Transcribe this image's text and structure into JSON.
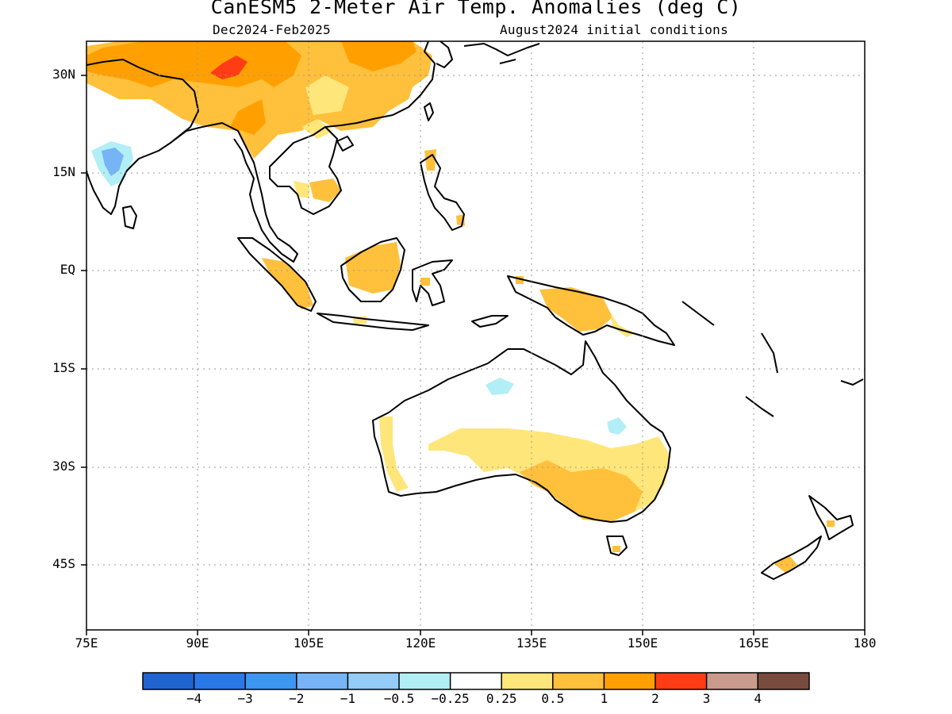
{
  "title": "CanESM5 2-Meter Air Temp. Anomalies (deg C)",
  "period": "Dec2024-Feb2025",
  "init": "August2024 initial conditions",
  "lat_labels": [
    "30N",
    "15N",
    "EQ",
    "15S",
    "30S",
    "45S"
  ],
  "lon_labels": [
    "75E",
    "90E",
    "105E",
    "120E",
    "135E",
    "150E",
    "165E",
    "180"
  ],
  "map": {
    "lon_range": [
      75,
      180
    ],
    "lat_range": [
      -55,
      35
    ],
    "grid": "dotted"
  },
  "colorbar": {
    "colors": [
      "#1f64d1",
      "#2a77e8",
      "#3d96f0",
      "#76b4f5",
      "#95cbf7",
      "#b2eef6",
      "#ffffff",
      "#ffe67a",
      "#ffc03c",
      "#ffa000",
      "#ff3c14",
      "#c89b8c",
      "#784b3c"
    ],
    "labels": [
      "−4",
      "−3",
      "−2",
      "−1",
      "−0.5",
      "−0.25",
      "0.25",
      "0.5",
      "1",
      "2",
      "3",
      "4"
    ]
  }
}
